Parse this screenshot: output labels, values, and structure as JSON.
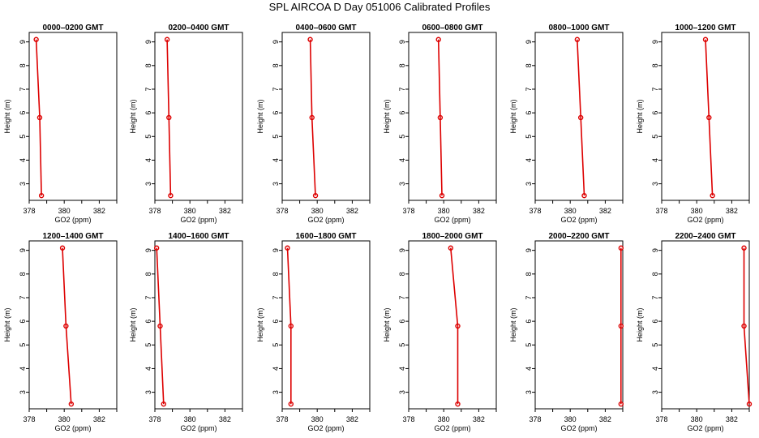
{
  "title": "SPL AIRCOA D  Day 051006  Calibrated Profiles",
  "colors": {
    "profile": "#dd0000",
    "axis": "#000000",
    "background": "#ffffff"
  },
  "chart_data": [
    {
      "type": "line",
      "title": "0000–0200 GMT",
      "xlabel": "GO2 (ppm)",
      "ylabel": "Height (m)",
      "xlim": [
        378,
        383
      ],
      "ylim": [
        2.3,
        9.4
      ],
      "x_ticks": [
        378,
        380,
        382
      ],
      "y_ticks": [
        3,
        4,
        5,
        6,
        7,
        8,
        9
      ],
      "grid": false,
      "series": [
        {
          "x": [
            378.4,
            378.6,
            378.7
          ],
          "y": [
            9.1,
            5.8,
            2.5
          ]
        }
      ]
    },
    {
      "type": "line",
      "title": "0200–0400 GMT",
      "xlabel": "GO2 (ppm)",
      "ylabel": "Height (m)",
      "xlim": [
        378,
        383
      ],
      "ylim": [
        2.3,
        9.4
      ],
      "x_ticks": [
        378,
        380,
        382
      ],
      "y_ticks": [
        3,
        4,
        5,
        6,
        7,
        8,
        9
      ],
      "grid": false,
      "series": [
        {
          "x": [
            378.7,
            378.8,
            378.9
          ],
          "y": [
            9.1,
            5.8,
            2.5
          ]
        }
      ]
    },
    {
      "type": "line",
      "title": "0400–0600 GMT",
      "xlabel": "GO2 (ppm)",
      "ylabel": "Height (m)",
      "xlim": [
        378,
        383
      ],
      "ylim": [
        2.3,
        9.4
      ],
      "x_ticks": [
        378,
        380,
        382
      ],
      "y_ticks": [
        3,
        4,
        5,
        6,
        7,
        8,
        9
      ],
      "grid": false,
      "series": [
        {
          "x": [
            379.6,
            379.7,
            379.9
          ],
          "y": [
            9.1,
            5.8,
            2.5
          ]
        }
      ]
    },
    {
      "type": "line",
      "title": "0600–0800 GMT",
      "xlabel": "GO2 (ppm)",
      "ylabel": "Height (m)",
      "xlim": [
        378,
        383
      ],
      "ylim": [
        2.3,
        9.4
      ],
      "x_ticks": [
        378,
        380,
        382
      ],
      "y_ticks": [
        3,
        4,
        5,
        6,
        7,
        8,
        9
      ],
      "grid": false,
      "series": [
        {
          "x": [
            379.7,
            379.8,
            379.9
          ],
          "y": [
            9.1,
            5.8,
            2.5
          ]
        }
      ]
    },
    {
      "type": "line",
      "title": "0800–1000 GMT",
      "xlabel": "GO2 (ppm)",
      "ylabel": "Height (m)",
      "xlim": [
        378,
        383
      ],
      "ylim": [
        2.3,
        9.4
      ],
      "x_ticks": [
        378,
        380,
        382
      ],
      "y_ticks": [
        3,
        4,
        5,
        6,
        7,
        8,
        9
      ],
      "grid": false,
      "series": [
        {
          "x": [
            380.4,
            380.6,
            380.8
          ],
          "y": [
            9.1,
            5.8,
            2.5
          ]
        }
      ]
    },
    {
      "type": "line",
      "title": "1000–1200 GMT",
      "xlabel": "GO2 (ppm)",
      "ylabel": "Height (m)",
      "xlim": [
        378,
        383
      ],
      "ylim": [
        2.3,
        9.4
      ],
      "x_ticks": [
        378,
        380,
        382
      ],
      "y_ticks": [
        3,
        4,
        5,
        6,
        7,
        8,
        9
      ],
      "grid": false,
      "series": [
        {
          "x": [
            380.5,
            380.7,
            380.9
          ],
          "y": [
            9.1,
            5.8,
            2.5
          ]
        }
      ]
    },
    {
      "type": "line",
      "title": "1200–1400 GMT",
      "xlabel": "GO2 (ppm)",
      "ylabel": "Height (m)",
      "xlim": [
        378,
        383
      ],
      "ylim": [
        2.3,
        9.4
      ],
      "x_ticks": [
        378,
        380,
        382
      ],
      "y_ticks": [
        3,
        4,
        5,
        6,
        7,
        8,
        9
      ],
      "grid": false,
      "series": [
        {
          "x": [
            379.9,
            380.1,
            380.4
          ],
          "y": [
            9.1,
            5.8,
            2.5
          ]
        }
      ]
    },
    {
      "type": "line",
      "title": "1400–1600 GMT",
      "xlabel": "GO2 (ppm)",
      "ylabel": "Height (m)",
      "xlim": [
        378,
        383
      ],
      "ylim": [
        2.3,
        9.4
      ],
      "x_ticks": [
        378,
        380,
        382
      ],
      "y_ticks": [
        3,
        4,
        5,
        6,
        7,
        8,
        9
      ],
      "grid": false,
      "series": [
        {
          "x": [
            378.1,
            378.3,
            378.5
          ],
          "y": [
            9.1,
            5.8,
            2.5
          ]
        }
      ]
    },
    {
      "type": "line",
      "title": "1600–1800 GMT",
      "xlabel": "GO2 (ppm)",
      "ylabel": "Height (m)",
      "xlim": [
        378,
        383
      ],
      "ylim": [
        2.3,
        9.4
      ],
      "x_ticks": [
        378,
        380,
        382
      ],
      "y_ticks": [
        3,
        4,
        5,
        6,
        7,
        8,
        9
      ],
      "grid": false,
      "series": [
        {
          "x": [
            378.3,
            378.5,
            378.5
          ],
          "y": [
            9.1,
            5.8,
            2.5
          ]
        }
      ]
    },
    {
      "type": "line",
      "title": "1800–2000 GMT",
      "xlabel": "GO2 (ppm)",
      "ylabel": "Height (m)",
      "xlim": [
        378,
        383
      ],
      "ylim": [
        2.3,
        9.4
      ],
      "x_ticks": [
        378,
        380,
        382
      ],
      "y_ticks": [
        3,
        4,
        5,
        6,
        7,
        8,
        9
      ],
      "grid": false,
      "series": [
        {
          "x": [
            380.4,
            380.8,
            380.8
          ],
          "y": [
            9.1,
            5.8,
            2.5
          ]
        }
      ]
    },
    {
      "type": "line",
      "title": "2000–2200 GMT",
      "xlabel": "GO2 (ppm)",
      "ylabel": "Height (m)",
      "xlim": [
        378,
        383
      ],
      "ylim": [
        2.3,
        9.4
      ],
      "x_ticks": [
        378,
        380,
        382
      ],
      "y_ticks": [
        3,
        4,
        5,
        6,
        7,
        8,
        9
      ],
      "grid": false,
      "series": [
        {
          "x": [
            382.9,
            382.9,
            382.9
          ],
          "y": [
            9.1,
            5.8,
            2.5
          ]
        }
      ]
    },
    {
      "type": "line",
      "title": "2200–2400 GMT",
      "xlabel": "GO2 (ppm)",
      "ylabel": "Height (m)",
      "xlim": [
        378,
        383
      ],
      "ylim": [
        2.3,
        9.4
      ],
      "x_ticks": [
        378,
        380,
        382
      ],
      "y_ticks": [
        3,
        4,
        5,
        6,
        7,
        8,
        9
      ],
      "grid": false,
      "series": [
        {
          "x": [
            382.7,
            382.7,
            383.0
          ],
          "y": [
            9.1,
            5.8,
            2.5
          ]
        }
      ]
    }
  ]
}
